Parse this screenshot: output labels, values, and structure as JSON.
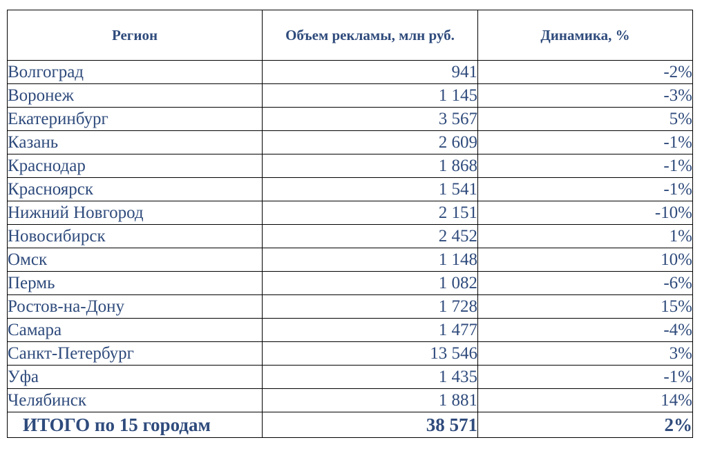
{
  "table": {
    "headers": {
      "region": "Регион",
      "volume": "Объем рекламы, млн руб.",
      "dynamic": "Динамика, %"
    },
    "rows": [
      {
        "region": "Волгоград",
        "volume": "941",
        "dynamic": "-2%"
      },
      {
        "region": "Воронеж",
        "volume": "1 145",
        "dynamic": "-3%"
      },
      {
        "region": "Екатеринбург",
        "volume": "3 567",
        "dynamic": "5%"
      },
      {
        "region": "Казань",
        "volume": "2 609",
        "dynamic": "-1%"
      },
      {
        "region": "Краснодар",
        "volume": "1 868",
        "dynamic": "-1%"
      },
      {
        "region": "Красноярск",
        "volume": "1 541",
        "dynamic": "-1%"
      },
      {
        "region": "Нижний Новгород",
        "volume": "2 151",
        "dynamic": "-10%"
      },
      {
        "region": "Новосибирск",
        "volume": "2 452",
        "dynamic": "1%"
      },
      {
        "region": "Омск",
        "volume": "1 148",
        "dynamic": "10%"
      },
      {
        "region": "Пермь",
        "volume": "1 082",
        "dynamic": "-6%"
      },
      {
        "region": "Ростов-на-Дону",
        "volume": "1 728",
        "dynamic": "15%"
      },
      {
        "region": "Самара",
        "volume": "1 477",
        "dynamic": "-4%"
      },
      {
        "region": "Санкт-Петербург",
        "volume": "13 546",
        "dynamic": "3%"
      },
      {
        "region": "Уфа",
        "volume": "1 435",
        "dynamic": "-1%"
      },
      {
        "region": "Челябинск",
        "volume": "1 881",
        "dynamic": "14%"
      }
    ],
    "total": {
      "region": "ИТОГО по 15 городам",
      "volume": "38 571",
      "dynamic": "2%"
    }
  },
  "colors": {
    "text": "#2f4b7c",
    "border": "#000000",
    "background": "#ffffff"
  }
}
